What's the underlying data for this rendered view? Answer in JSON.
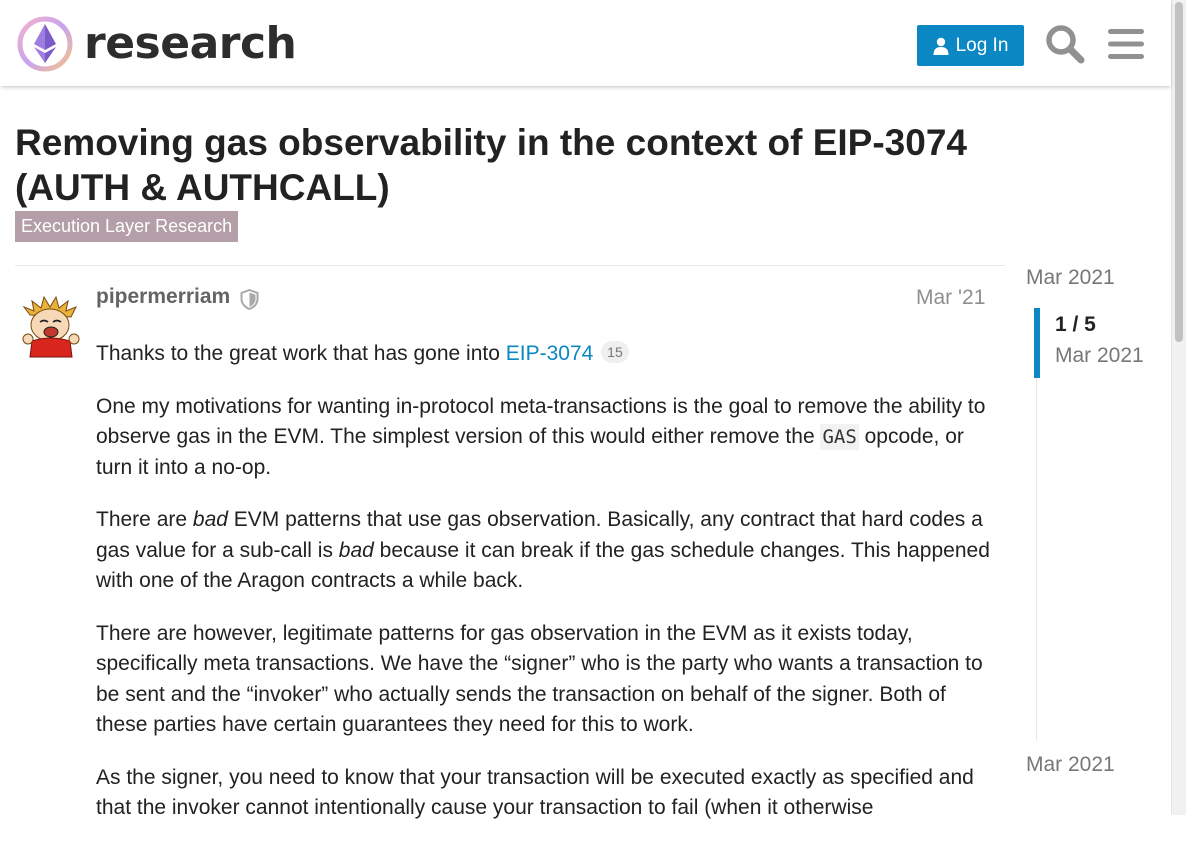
{
  "header": {
    "logo_text": "research",
    "login_label": "Log In"
  },
  "topic": {
    "title": "Removing gas observability in the context of EIP-3074 (AUTH & AUTHCALL)",
    "category": "Execution Layer Research",
    "category_color": "#b49ea7"
  },
  "post": {
    "username": "pipermerriam",
    "date": "Mar '21",
    "p1_before": "Thanks to the great work that has gone into ",
    "p1_link": "EIP-3074",
    "p1_clicks": "15",
    "p2_before": "One my motivations for wanting in-protocol meta-transactions is the goal to remove the ability to observe gas in the EVM. The simplest version of this would either remove the ",
    "p2_code": "GAS",
    "p2_after": " opcode, or turn it into a no-op.",
    "p3_a": "There are ",
    "p3_em1": "bad",
    "p3_b": " EVM patterns that use gas observation. Basically, any contract that hard codes a gas value for a sub-call is ",
    "p3_em2": "bad",
    "p3_c": " because it can break if the gas schedule changes. This happened with one of the Aragon contracts a while back.",
    "p4": "There are however, legitimate patterns for gas observation in the EVM as it exists today, specifically meta transactions. We have the “signer” who is the party who wants a transaction to be sent and the “invoker” who actually sends the transaction on behalf of the signer. Both of these parties have certain guarantees they need for this to work.",
    "p5": "As the signer, you need to know that your transaction will be executed exactly as specified and that the invoker cannot intentionally cause your transaction to fail (when it otherwise"
  },
  "timeline": {
    "start_date": "Mar 2021",
    "position": "1 / 5",
    "current_date": "Mar 2021",
    "end_date": "Mar 2021"
  },
  "colors": {
    "accent": "#0b87c4",
    "text": "#222222",
    "muted": "#8f8f8f"
  },
  "icons": [
    "ethereum-logo-icon",
    "user-icon",
    "search-icon",
    "hamburger-menu-icon",
    "shield-icon"
  ]
}
